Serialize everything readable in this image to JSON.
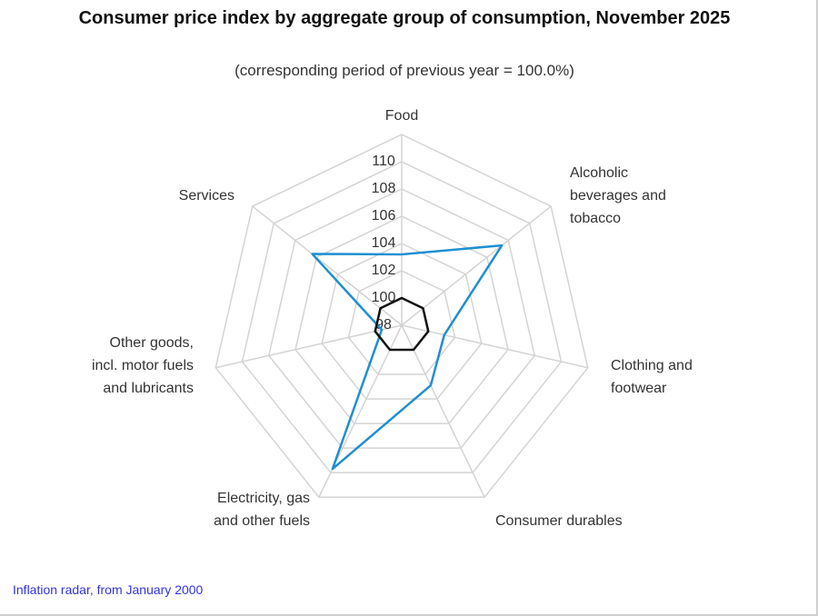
{
  "chart_data": {
    "type": "radar",
    "title": "Consumer price index by aggregate group of consumption, November 2025",
    "subtitle": "(corresponding period of previous year = 100.0%)",
    "categories": [
      "Food",
      "Alcoholic beverages and tobacco",
      "Clothing and footwear",
      "Consumer durables",
      "Electricity, gas and other fuels",
      "Other goods, incl. motor fuels and lubricants",
      "Services"
    ],
    "series": [
      {
        "color": "#1f8fd0",
        "values": [
          103.2,
          107.4,
          101.2,
          102.9,
          109.7,
          99.5,
          106.4
        ]
      },
      {
        "color": "#111111",
        "values": [
          100,
          100,
          100,
          100,
          100,
          100,
          100
        ]
      }
    ],
    "ylim": [
      98,
      112
    ],
    "yticks": [
      98,
      100,
      102,
      104,
      106,
      108,
      110
    ],
    "grid": true,
    "footer_link": "Inflation radar, from January 2000"
  }
}
